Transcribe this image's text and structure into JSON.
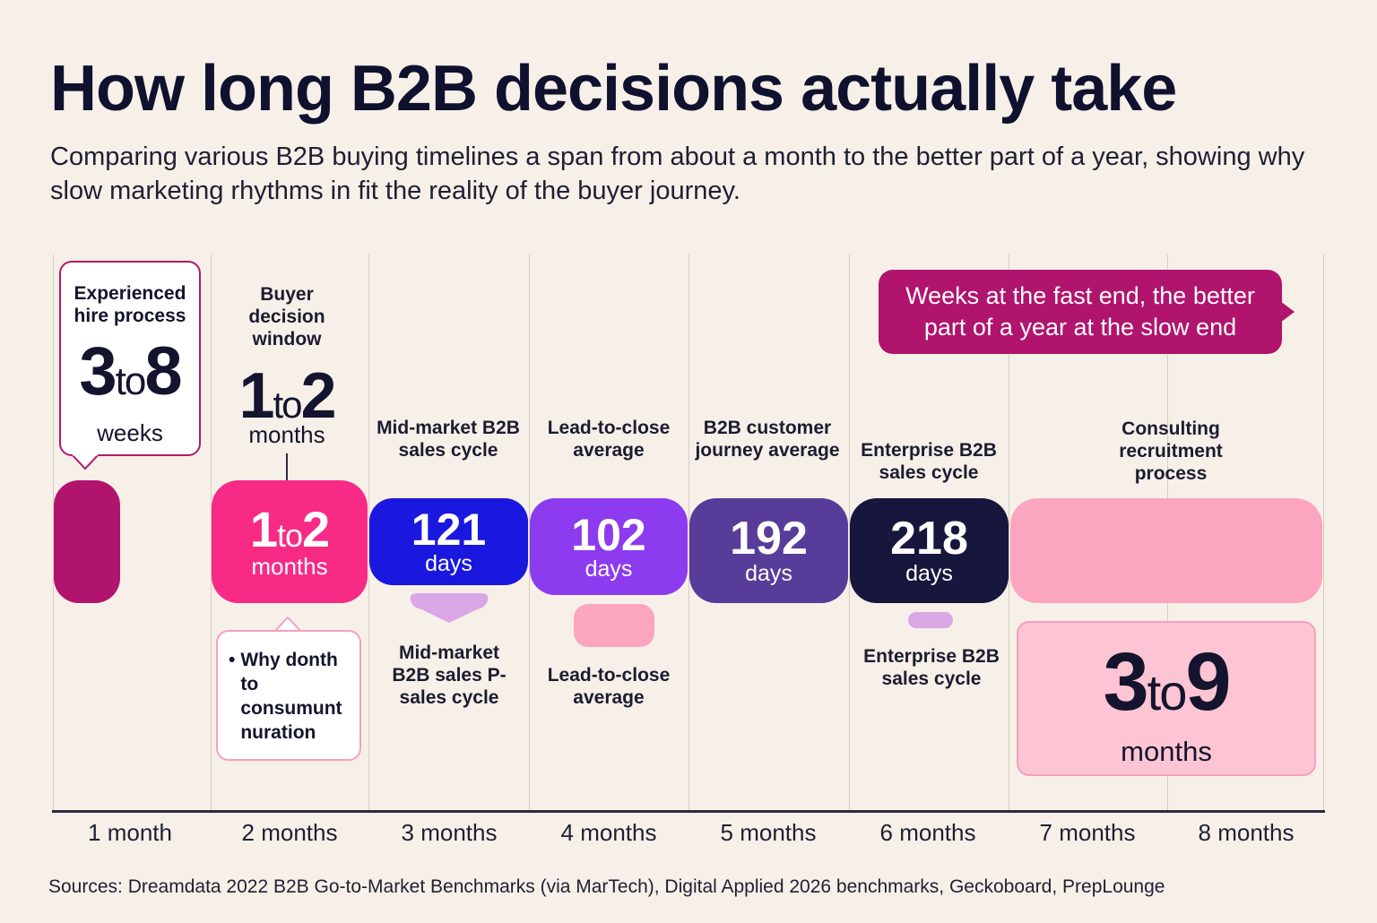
{
  "title": "How long B2B decisions actually take",
  "subtitle": "Comparing various B2B buying timelines a span from about a month to the better part of a year, showing why slow marketing rhythms in fit the reality of the buyer journey.",
  "source": "Sources: Dreamdata 2022 B2B Go-to-Market Benchmarks (via MarTech), Digital Applied 2026 benchmarks, Geckoboard, PrepLounge",
  "banner": "Weeks at the fast end, the better part of a year at the slow end",
  "experienced": {
    "label": "Experienced hire process",
    "from": "3",
    "to_word": "to",
    "until": "8",
    "unit": "weeks"
  },
  "buyer_window": {
    "label": "Buyer decision window",
    "from": "1",
    "to_word": "to",
    "until": "2",
    "unit": "months"
  },
  "bar_1to2": {
    "from": "1",
    "to_word": "to",
    "until": "2",
    "unit": "months"
  },
  "note_box": {
    "bullet": "•",
    "text": "Why donth to consumunt nuration"
  },
  "mid_market": {
    "top_label": "Mid-market B2B sales cycle",
    "bottom_label": "Mid-market B2B sales P-sales cycle",
    "value": "121",
    "unit": "days"
  },
  "lead_to_close": {
    "top_label": "Lead-to-close average",
    "bottom_label": "Lead-to-close average",
    "value": "102",
    "unit": "days"
  },
  "customer_journey": {
    "top_label": "B2B customer journey average",
    "value": "192",
    "unit": "days"
  },
  "enterprise": {
    "top_label": "Enterprise B2B sales cycle",
    "bottom_label": "Enterprise B2B sales cycle",
    "value": "218",
    "unit": "days"
  },
  "consulting": {
    "label": "Consulting recruitment process",
    "from": "3",
    "to_word": "to",
    "until": "9",
    "unit": "months"
  },
  "colors": {
    "magenta_dark": "#b0146d",
    "pink_hot": "#f72a85",
    "blue": "#1a17df",
    "violet": "#8d3bee",
    "indigo": "#573c99",
    "navy": "#17163d",
    "pink_light": "#fca5bf",
    "lavender": "#d9a6e6"
  },
  "chart_data": {
    "type": "bar",
    "orientation": "horizontal",
    "title": "How long B2B decisions actually take",
    "x_axis_unit": "months",
    "x_ticks": [
      "1 month",
      "2 months",
      "3 months",
      "4 months",
      "5 months",
      "6 months",
      "7 months",
      "8 months"
    ],
    "series": [
      {
        "name": "Experienced hire process",
        "value": "3 to 8 weeks"
      },
      {
        "name": "Buyer decision window",
        "value": "1 to 2 months"
      },
      {
        "name": "Mid-market B2B sales cycle",
        "value": 121,
        "unit": "days"
      },
      {
        "name": "Lead-to-close average",
        "value": 102,
        "unit": "days"
      },
      {
        "name": "B2B customer journey average",
        "value": 192,
        "unit": "days"
      },
      {
        "name": "Enterprise B2B sales cycle",
        "value": 218,
        "unit": "days"
      },
      {
        "name": "Consulting recruitment process",
        "value": "3 to 9 months"
      }
    ]
  }
}
